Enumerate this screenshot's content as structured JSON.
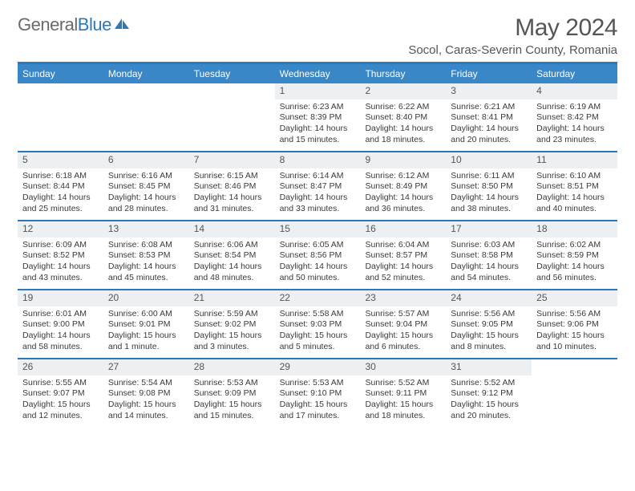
{
  "logo": {
    "text_gray": "General",
    "text_blue": "Blue"
  },
  "title": "May 2024",
  "location": "Socol, Caras-Severin County, Romania",
  "colors": {
    "accent": "#2d78bb",
    "header_bg": "#3a87c7",
    "daynum_bg": "#edf0f2",
    "text": "#3a3a3a"
  },
  "weekdays": [
    "Sunday",
    "Monday",
    "Tuesday",
    "Wednesday",
    "Thursday",
    "Friday",
    "Saturday"
  ],
  "weeks": [
    [
      {
        "n": "",
        "sr": "",
        "ss": "",
        "dl": ""
      },
      {
        "n": "",
        "sr": "",
        "ss": "",
        "dl": ""
      },
      {
        "n": "",
        "sr": "",
        "ss": "",
        "dl": ""
      },
      {
        "n": "1",
        "sr": "Sunrise: 6:23 AM",
        "ss": "Sunset: 8:39 PM",
        "dl": "Daylight: 14 hours and 15 minutes."
      },
      {
        "n": "2",
        "sr": "Sunrise: 6:22 AM",
        "ss": "Sunset: 8:40 PM",
        "dl": "Daylight: 14 hours and 18 minutes."
      },
      {
        "n": "3",
        "sr": "Sunrise: 6:21 AM",
        "ss": "Sunset: 8:41 PM",
        "dl": "Daylight: 14 hours and 20 minutes."
      },
      {
        "n": "4",
        "sr": "Sunrise: 6:19 AM",
        "ss": "Sunset: 8:42 PM",
        "dl": "Daylight: 14 hours and 23 minutes."
      }
    ],
    [
      {
        "n": "5",
        "sr": "Sunrise: 6:18 AM",
        "ss": "Sunset: 8:44 PM",
        "dl": "Daylight: 14 hours and 25 minutes."
      },
      {
        "n": "6",
        "sr": "Sunrise: 6:16 AM",
        "ss": "Sunset: 8:45 PM",
        "dl": "Daylight: 14 hours and 28 minutes."
      },
      {
        "n": "7",
        "sr": "Sunrise: 6:15 AM",
        "ss": "Sunset: 8:46 PM",
        "dl": "Daylight: 14 hours and 31 minutes."
      },
      {
        "n": "8",
        "sr": "Sunrise: 6:14 AM",
        "ss": "Sunset: 8:47 PM",
        "dl": "Daylight: 14 hours and 33 minutes."
      },
      {
        "n": "9",
        "sr": "Sunrise: 6:12 AM",
        "ss": "Sunset: 8:49 PM",
        "dl": "Daylight: 14 hours and 36 minutes."
      },
      {
        "n": "10",
        "sr": "Sunrise: 6:11 AM",
        "ss": "Sunset: 8:50 PM",
        "dl": "Daylight: 14 hours and 38 minutes."
      },
      {
        "n": "11",
        "sr": "Sunrise: 6:10 AM",
        "ss": "Sunset: 8:51 PM",
        "dl": "Daylight: 14 hours and 40 minutes."
      }
    ],
    [
      {
        "n": "12",
        "sr": "Sunrise: 6:09 AM",
        "ss": "Sunset: 8:52 PM",
        "dl": "Daylight: 14 hours and 43 minutes."
      },
      {
        "n": "13",
        "sr": "Sunrise: 6:08 AM",
        "ss": "Sunset: 8:53 PM",
        "dl": "Daylight: 14 hours and 45 minutes."
      },
      {
        "n": "14",
        "sr": "Sunrise: 6:06 AM",
        "ss": "Sunset: 8:54 PM",
        "dl": "Daylight: 14 hours and 48 minutes."
      },
      {
        "n": "15",
        "sr": "Sunrise: 6:05 AM",
        "ss": "Sunset: 8:56 PM",
        "dl": "Daylight: 14 hours and 50 minutes."
      },
      {
        "n": "16",
        "sr": "Sunrise: 6:04 AM",
        "ss": "Sunset: 8:57 PM",
        "dl": "Daylight: 14 hours and 52 minutes."
      },
      {
        "n": "17",
        "sr": "Sunrise: 6:03 AM",
        "ss": "Sunset: 8:58 PM",
        "dl": "Daylight: 14 hours and 54 minutes."
      },
      {
        "n": "18",
        "sr": "Sunrise: 6:02 AM",
        "ss": "Sunset: 8:59 PM",
        "dl": "Daylight: 14 hours and 56 minutes."
      }
    ],
    [
      {
        "n": "19",
        "sr": "Sunrise: 6:01 AM",
        "ss": "Sunset: 9:00 PM",
        "dl": "Daylight: 14 hours and 58 minutes."
      },
      {
        "n": "20",
        "sr": "Sunrise: 6:00 AM",
        "ss": "Sunset: 9:01 PM",
        "dl": "Daylight: 15 hours and 1 minute."
      },
      {
        "n": "21",
        "sr": "Sunrise: 5:59 AM",
        "ss": "Sunset: 9:02 PM",
        "dl": "Daylight: 15 hours and 3 minutes."
      },
      {
        "n": "22",
        "sr": "Sunrise: 5:58 AM",
        "ss": "Sunset: 9:03 PM",
        "dl": "Daylight: 15 hours and 5 minutes."
      },
      {
        "n": "23",
        "sr": "Sunrise: 5:57 AM",
        "ss": "Sunset: 9:04 PM",
        "dl": "Daylight: 15 hours and 6 minutes."
      },
      {
        "n": "24",
        "sr": "Sunrise: 5:56 AM",
        "ss": "Sunset: 9:05 PM",
        "dl": "Daylight: 15 hours and 8 minutes."
      },
      {
        "n": "25",
        "sr": "Sunrise: 5:56 AM",
        "ss": "Sunset: 9:06 PM",
        "dl": "Daylight: 15 hours and 10 minutes."
      }
    ],
    [
      {
        "n": "26",
        "sr": "Sunrise: 5:55 AM",
        "ss": "Sunset: 9:07 PM",
        "dl": "Daylight: 15 hours and 12 minutes."
      },
      {
        "n": "27",
        "sr": "Sunrise: 5:54 AM",
        "ss": "Sunset: 9:08 PM",
        "dl": "Daylight: 15 hours and 14 minutes."
      },
      {
        "n": "28",
        "sr": "Sunrise: 5:53 AM",
        "ss": "Sunset: 9:09 PM",
        "dl": "Daylight: 15 hours and 15 minutes."
      },
      {
        "n": "29",
        "sr": "Sunrise: 5:53 AM",
        "ss": "Sunset: 9:10 PM",
        "dl": "Daylight: 15 hours and 17 minutes."
      },
      {
        "n": "30",
        "sr": "Sunrise: 5:52 AM",
        "ss": "Sunset: 9:11 PM",
        "dl": "Daylight: 15 hours and 18 minutes."
      },
      {
        "n": "31",
        "sr": "Sunrise: 5:52 AM",
        "ss": "Sunset: 9:12 PM",
        "dl": "Daylight: 15 hours and 20 minutes."
      },
      {
        "n": "",
        "sr": "",
        "ss": "",
        "dl": ""
      }
    ]
  ]
}
